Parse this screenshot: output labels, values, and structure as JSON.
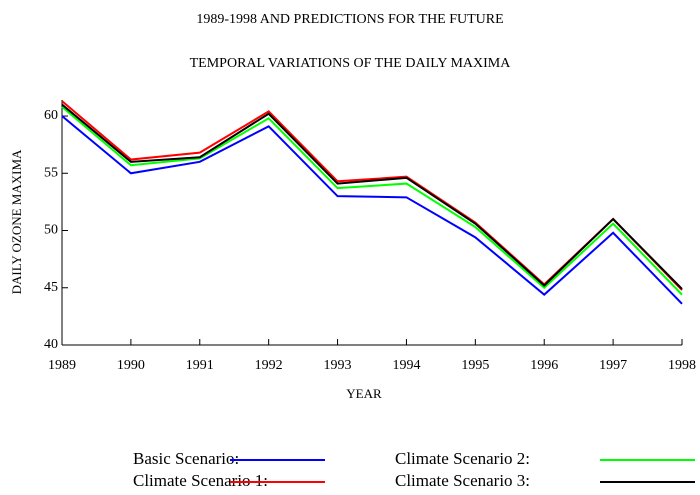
{
  "chart_data": {
    "type": "line",
    "title": "1989-1998 AND PREDICTIONS FOR THE FUTURE",
    "subtitle": "TEMPORAL VARIATIONS OF THE DAILY MAXIMA",
    "x_label": "YEAR",
    "y_label": "DAILY OZONE MAXIMA",
    "x": [
      1989,
      1990,
      1991,
      1992,
      1993,
      1994,
      1995,
      1996,
      1997,
      1998
    ],
    "xlim": [
      1989,
      1998
    ],
    "xticks": [
      1989,
      1990,
      1991,
      1992,
      1993,
      1994,
      1995,
      1996,
      1997,
      1998
    ],
    "ylim": [
      40,
      61.4
    ],
    "yticks": [
      40,
      45,
      50,
      55,
      60
    ],
    "series": [
      {
        "name": "Basic Scenario:",
        "color": "#0000ff",
        "values": [
          60,
          55,
          56,
          59.1,
          53,
          52.9,
          49.4,
          44.4,
          49.8,
          43.6
        ]
      },
      {
        "name": "Climate Scenario 1:",
        "color": "#ff0000",
        "values": [
          61.3,
          56.2,
          56.8,
          60.4,
          54.3,
          54.7,
          50.7,
          45.3,
          51,
          44.8
        ]
      },
      {
        "name": "Climate Scenario 2:",
        "color": "#00ff00",
        "values": [
          60.8,
          55.7,
          56.3,
          59.8,
          53.7,
          54.1,
          50.3,
          45,
          50.6,
          44.4
        ]
      },
      {
        "name": "Climate Scenario 3:",
        "color": "#000000",
        "values": [
          61,
          56,
          56.4,
          60.2,
          54.1,
          54.6,
          50.6,
          45.2,
          51,
          44.9
        ]
      }
    ]
  }
}
